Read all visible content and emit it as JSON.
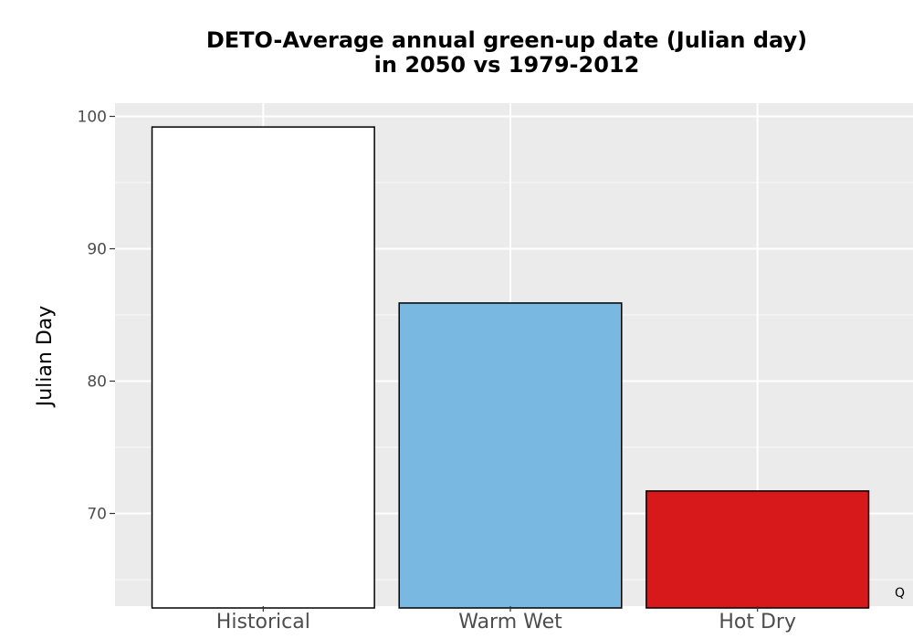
{
  "chart_data": {
    "type": "bar",
    "title_lines": [
      "DETO-Average annual green-up date (Julian day)",
      "in 2050 vs 1979-2012"
    ],
    "xlabel": "",
    "ylabel": "Julian Day",
    "categories": [
      "Historical",
      "Warm Wet",
      "Hot Dry"
    ],
    "values": [
      99.2,
      85.9,
      71.7
    ],
    "colors": [
      "#ffffff",
      "#79b8e1",
      "#d7191c"
    ],
    "bar_outline_color": "#000000",
    "ylim": [
      63,
      101
    ],
    "yticks": [
      70,
      80,
      90,
      100
    ],
    "grid": true,
    "panel_background": "#ebebeb",
    "grid_color": "#ffffff",
    "corner_mark": "Q"
  }
}
